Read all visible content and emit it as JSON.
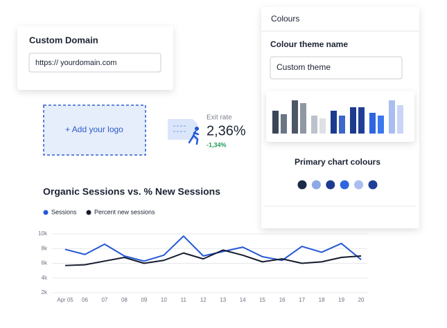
{
  "domain_card": {
    "title": "Custom Domain",
    "input": "https:// yourdomain.com"
  },
  "logo_box": {
    "label": "+ Add your logo"
  },
  "metric": {
    "label": "Exit rate",
    "value": "2,36%",
    "change": "-1,34%"
  },
  "colours_panel": {
    "header": "Colours",
    "theme_label": "Colour theme name",
    "theme_input": "Custom theme",
    "preview_bars": {
      "ylim": [
        0,
        50
      ],
      "values": [
        33,
        28,
        48,
        44,
        26,
        22,
        33,
        26,
        38,
        38,
        30,
        26,
        48,
        41
      ],
      "colors": [
        "#3a4556",
        "#6b7585",
        "#4d5665",
        "#8f97a3",
        "#bcc2cb",
        "#dde0e5",
        "#1c3b8f",
        "#3e67cc",
        "#1c3b8f",
        "#1f3f97",
        "#2f66e0",
        "#3b78ef",
        "#a9bdf0",
        "#c8d5f6"
      ]
    },
    "primary_label": "Primary chart colours",
    "primary_colours": [
      "#1c2b45",
      "#8fa9e6",
      "#1c3b8f",
      "#2f66e0",
      "#a9bdf0",
      "#1f3f97"
    ]
  },
  "chart_data": {
    "type": "line",
    "title": "Organic Sessions vs. % New Sessions",
    "categories": [
      "Apr 05",
      "06",
      "07",
      "08",
      "09",
      "10",
      "11",
      "12",
      "13",
      "14",
      "15",
      "16",
      "17",
      "18",
      "19",
      "20"
    ],
    "series": [
      {
        "name": "Sessions",
        "color": "#2457d6",
        "values": [
          7900,
          7200,
          8600,
          7000,
          6300,
          7100,
          9700,
          7000,
          7600,
          8200,
          6900,
          6400,
          8300,
          7500,
          8700,
          6500
        ]
      },
      {
        "name": "Percent new sessions",
        "color": "#141b2d",
        "values": [
          5700,
          5800,
          6300,
          6800,
          6000,
          6400,
          7400,
          6600,
          7800,
          7100,
          6200,
          6600,
          6000,
          6200,
          6800,
          7000
        ]
      }
    ],
    "ylim": [
      2000,
      10000
    ],
    "yticks": [
      {
        "value": 2000,
        "label": "2k"
      },
      {
        "value": 4000,
        "label": "4k"
      },
      {
        "value": 6000,
        "label": "6k"
      },
      {
        "value": 8000,
        "label": "8k"
      },
      {
        "value": 10000,
        "label": "10k"
      }
    ],
    "grid": true
  }
}
